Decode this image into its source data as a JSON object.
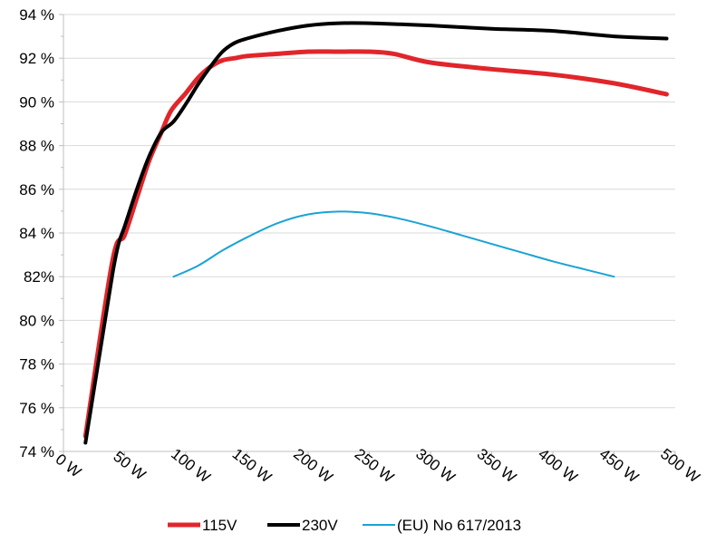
{
  "chart_data": {
    "type": "line",
    "title": "",
    "xlabel": "",
    "ylabel": "",
    "xlim": [
      0,
      500
    ],
    "ylim": [
      74,
      94
    ],
    "x_ticks": [
      {
        "value": 0,
        "label": "0 W"
      },
      {
        "value": 50,
        "label": "50 W"
      },
      {
        "value": 100,
        "label": "100 W"
      },
      {
        "value": 150,
        "label": "150 W"
      },
      {
        "value": 200,
        "label": "200 W"
      },
      {
        "value": 250,
        "label": "250 W"
      },
      {
        "value": 300,
        "label": "300 W"
      },
      {
        "value": 350,
        "label": "350 W"
      },
      {
        "value": 400,
        "label": "400 W"
      },
      {
        "value": 450,
        "label": "450 W"
      },
      {
        "value": 500,
        "label": "500 W"
      }
    ],
    "y_ticks": [
      {
        "value": 74,
        "label": "74 %"
      },
      {
        "value": 76,
        "label": "76 %"
      },
      {
        "value": 78,
        "label": "78 %"
      },
      {
        "value": 80,
        "label": "80 %"
      },
      {
        "value": 82,
        "label": "82%"
      },
      {
        "value": 84,
        "label": "84 %"
      },
      {
        "value": 86,
        "label": "86 %"
      },
      {
        "value": 88,
        "label": "88 %"
      },
      {
        "value": 90,
        "label": "90 %"
      },
      {
        "value": 92,
        "label": "92 %"
      },
      {
        "value": 94,
        "label": "94 %"
      }
    ],
    "grid": "horizontal",
    "legend_position": "bottom",
    "series": [
      {
        "name": "115V",
        "color": "#e0262b",
        "points": [
          [
            18,
            74.7
          ],
          [
            40,
            82.7
          ],
          [
            50,
            83.9
          ],
          [
            60,
            85.6
          ],
          [
            70,
            87.3
          ],
          [
            80,
            88.6
          ],
          [
            88,
            89.6
          ],
          [
            100,
            90.4
          ],
          [
            110,
            91.1
          ],
          [
            120,
            91.6
          ],
          [
            130,
            91.9
          ],
          [
            140,
            92.0
          ],
          [
            150,
            92.1
          ],
          [
            175,
            92.2
          ],
          [
            200,
            92.3
          ],
          [
            225,
            92.3
          ],
          [
            250,
            92.3
          ],
          [
            270,
            92.2
          ],
          [
            300,
            91.8
          ],
          [
            350,
            91.5
          ],
          [
            400,
            91.25
          ],
          [
            450,
            90.85
          ],
          [
            493,
            90.35
          ]
        ]
      },
      {
        "name": "230V",
        "color": "#000000",
        "points": [
          [
            18,
            74.4
          ],
          [
            30,
            78.6
          ],
          [
            40,
            82.1
          ],
          [
            45,
            83.5
          ],
          [
            50,
            84.3
          ],
          [
            60,
            86.0
          ],
          [
            70,
            87.5
          ],
          [
            80,
            88.6
          ],
          [
            90,
            89.1
          ],
          [
            100,
            89.9
          ],
          [
            110,
            90.8
          ],
          [
            120,
            91.6
          ],
          [
            130,
            92.3
          ],
          [
            140,
            92.7
          ],
          [
            150,
            92.9
          ],
          [
            175,
            93.25
          ],
          [
            200,
            93.5
          ],
          [
            225,
            93.6
          ],
          [
            250,
            93.6
          ],
          [
            275,
            93.55
          ],
          [
            300,
            93.5
          ],
          [
            350,
            93.35
          ],
          [
            400,
            93.25
          ],
          [
            450,
            93.0
          ],
          [
            493,
            92.9
          ]
        ]
      },
      {
        "name": "(EU) No 617/2013",
        "color": "#1aa3d4",
        "points": [
          [
            90,
            82.0
          ],
          [
            110,
            82.5
          ],
          [
            130,
            83.2
          ],
          [
            150,
            83.8
          ],
          [
            175,
            84.45
          ],
          [
            200,
            84.85
          ],
          [
            225,
            84.98
          ],
          [
            250,
            84.9
          ],
          [
            275,
            84.65
          ],
          [
            300,
            84.3
          ],
          [
            325,
            83.9
          ],
          [
            350,
            83.5
          ],
          [
            375,
            83.1
          ],
          [
            400,
            82.7
          ],
          [
            425,
            82.35
          ],
          [
            450,
            82.0
          ]
        ]
      }
    ]
  }
}
